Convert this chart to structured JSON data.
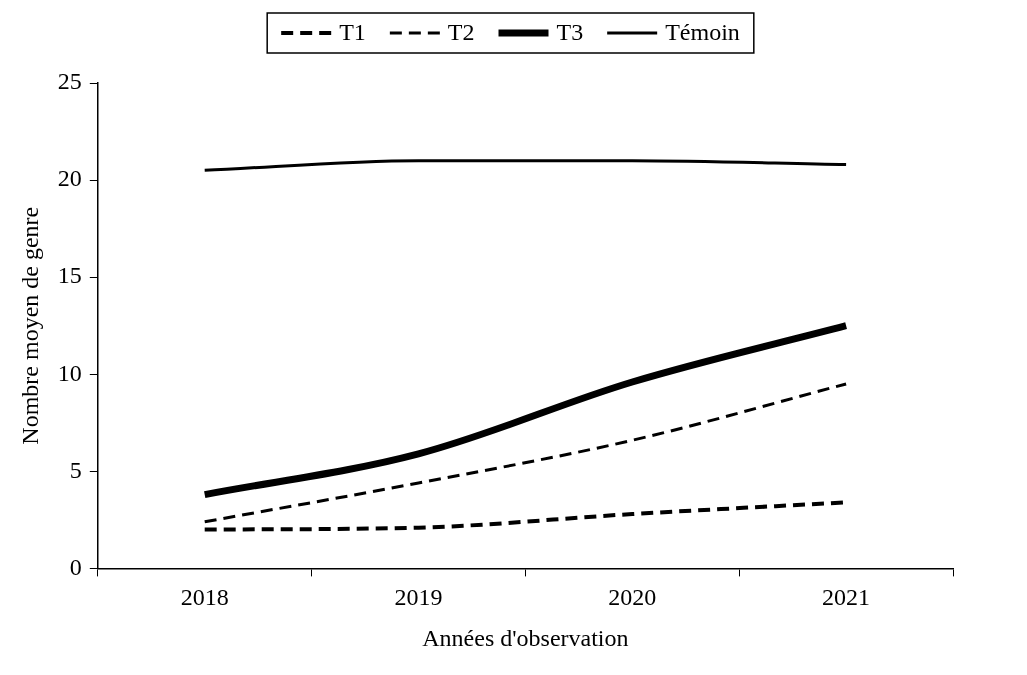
{
  "chart_data": {
    "type": "line",
    "xlabel": "Années d'observation",
    "ylabel": "Nombre moyen de genre",
    "categories": [
      "2018",
      "2019",
      "2020",
      "2021"
    ],
    "series": [
      {
        "name": "T1",
        "color": "#000000",
        "line_style": "dashed",
        "values": [
          2.0,
          2.1,
          2.8,
          3.4
        ]
      },
      {
        "name": "T2",
        "color": "#000000",
        "line_style": "dashed",
        "values": [
          2.4,
          4.4,
          6.6,
          9.5
        ]
      },
      {
        "name": "T3",
        "color": "#000000",
        "line_style": "solid",
        "values": [
          3.8,
          5.9,
          9.6,
          12.5
        ]
      },
      {
        "name": "Témoin",
        "color": "#000000",
        "line_style": "solid",
        "values": [
          20.5,
          21.0,
          21.0,
          20.8
        ]
      }
    ],
    "ylim": [
      0,
      25
    ],
    "yticks": [
      0,
      5,
      10,
      15,
      20,
      25
    ],
    "grid": false,
    "legend": "top",
    "marker": "none"
  }
}
